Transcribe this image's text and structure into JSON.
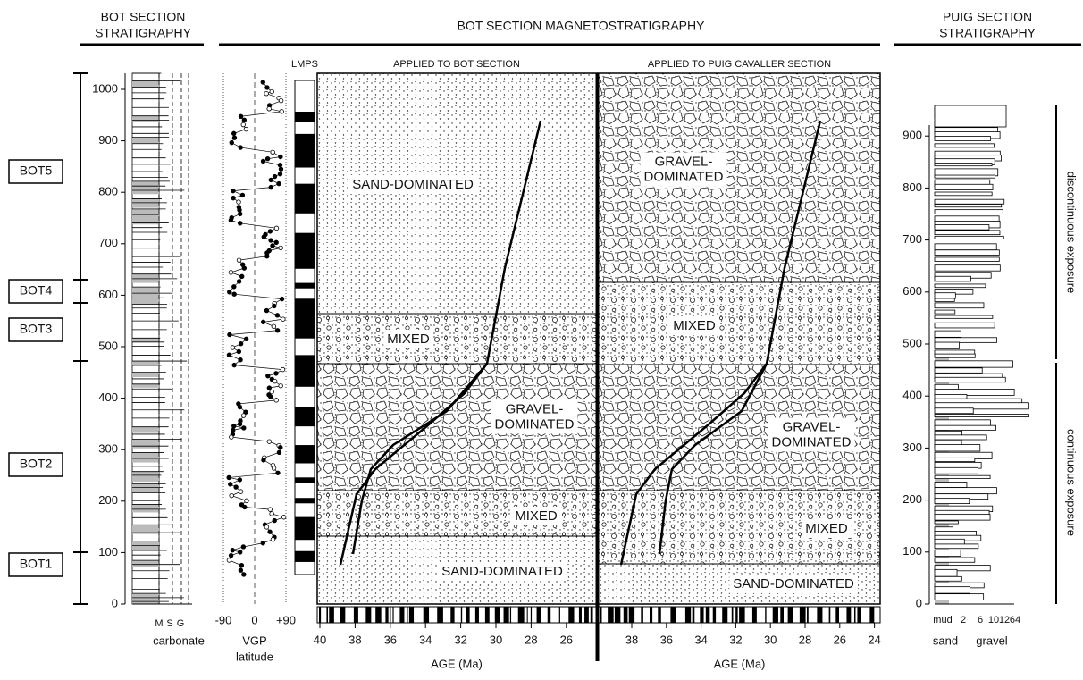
{
  "headers": {
    "bot_strat": [
      "BOT SECTION",
      "STRATIGRAPHY"
    ],
    "magneto": "BOT SECTION MAGNETOSTRATIGRAPHY",
    "puig_strat": [
      "PUIG SECTION",
      "STRATIGRAPHY"
    ]
  },
  "bot_depth_ticks": [
    0,
    100,
    200,
    300,
    400,
    500,
    600,
    700,
    800,
    900,
    1000
  ],
  "members": [
    "BOT5",
    "BOT4",
    "BOT3",
    "BOT2",
    "BOT1"
  ],
  "bot_column": {
    "grain": [
      "M",
      "S",
      "G"
    ],
    "carbonate": "carbonate"
  },
  "vgp": {
    "ticks": [
      "-90",
      "0",
      "+90"
    ],
    "label": [
      "VGP",
      "latitude"
    ]
  },
  "lmps": "LMPS",
  "panels": [
    {
      "title": "APPLIED TO BOT SECTION",
      "units": [
        [
          "SAND-DOMINATED"
        ],
        [
          "MIXED"
        ],
        [
          "GRAVEL-",
          "DOMINATED"
        ],
        [
          "MIXED"
        ],
        [
          "SAND-DOMINATED"
        ]
      ],
      "age_ticks": [
        40,
        38,
        36,
        34,
        32,
        30,
        28,
        26
      ],
      "axis_label": "AGE (Ma)"
    },
    {
      "title": "APPLIED TO PUIG CAVALLER SECTION",
      "units": [
        [
          "GRAVEL-",
          "DOMINATED"
        ],
        [
          "MIXED"
        ],
        [
          "GRAVEL-",
          "DOMINATED"
        ],
        [
          "MIXED"
        ],
        [
          "SAND-DOMINATED"
        ]
      ],
      "age_ticks": [
        38,
        36,
        34,
        32,
        30,
        28,
        26,
        24
      ],
      "axis_label": "AGE (Ma)"
    }
  ],
  "puig": {
    "depth_ticks": [
      0,
      100,
      200,
      300,
      400,
      500,
      600,
      700,
      800,
      900
    ],
    "grain_ticks": [
      "mud",
      2,
      6,
      10,
      12,
      64
    ],
    "grain_labels": [
      "sand",
      "gravel"
    ],
    "exposure": [
      "discontinuous exposure",
      "continuous exposure"
    ]
  }
}
